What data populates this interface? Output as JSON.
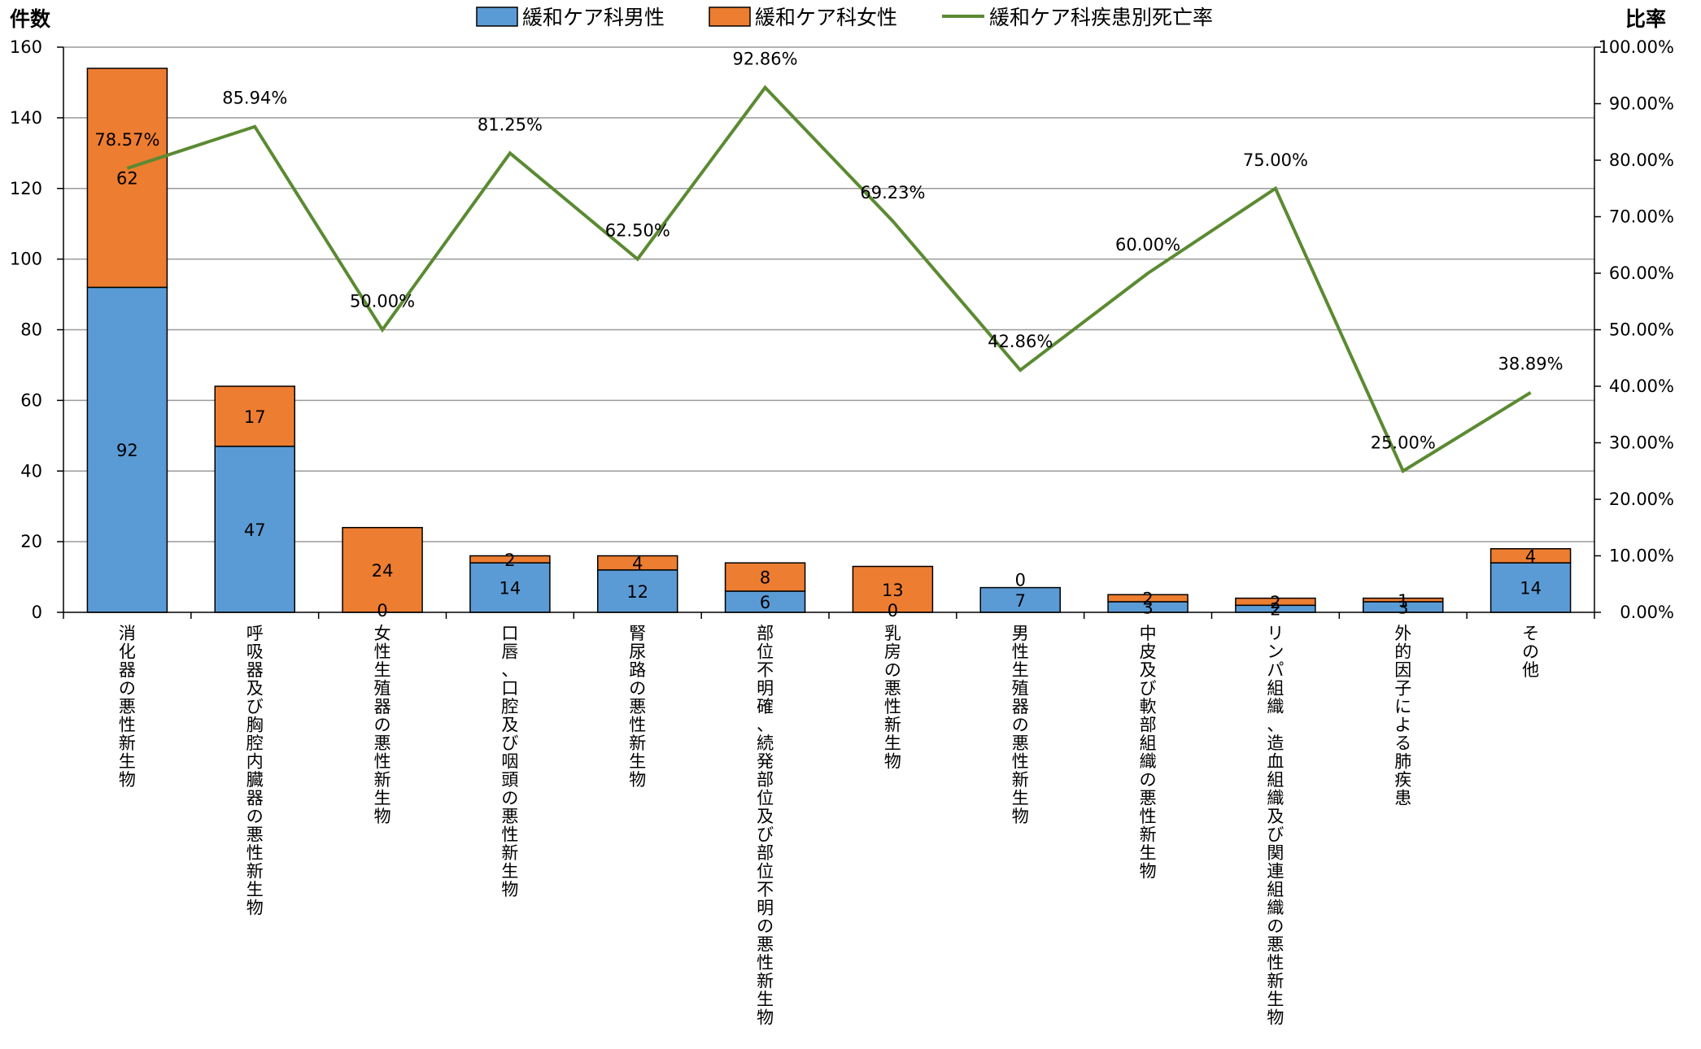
{
  "chart_data": {
    "type": "bar",
    "stacked": true,
    "y_left_title": "件数",
    "y_right_title": "比率",
    "ylim": [
      0,
      160
    ],
    "y_left_ticks": [
      "0",
      "20",
      "40",
      "60",
      "80",
      "100",
      "120",
      "140",
      "160"
    ],
    "y2lim": [
      0,
      1
    ],
    "y_right_ticks": [
      "0.00%",
      "10.00%",
      "20.00%",
      "30.00%",
      "40.00%",
      "50.00%",
      "60.00%",
      "70.00%",
      "80.00%",
      "90.00%",
      "100.00%"
    ],
    "gridlines": true,
    "legend_position": "top",
    "categories": [
      "消化器の悪性新生物",
      "呼吸器及び胸腔内臓器の悪性新生物",
      "女性生殖器の悪性新生物",
      "口唇、口腔及び咽頭の悪性新生物",
      "腎尿路の悪性新生物",
      "部位不明確、続発部位及び部位不明の悪性新生物",
      "乳房の悪性新生物",
      "男性生殖器の悪性新生物",
      "中皮及び軟部組織の悪性新生物",
      "リンパ組織、造血組織及び関連組織の悪性新生物",
      "外的因子による肺疾患",
      "その他"
    ],
    "series": [
      {
        "name": "緩和ケア科男性",
        "kind": "bar",
        "color": "#5b9bd5",
        "values": [
          92,
          47,
          0,
          14,
          12,
          6,
          0,
          7,
          3,
          2,
          3,
          14
        ],
        "labels": [
          "92",
          "47",
          "0",
          "14",
          "12",
          "6",
          "0",
          "7",
          "3",
          "2",
          "3",
          "14"
        ]
      },
      {
        "name": "緩和ケア科女性",
        "kind": "bar",
        "color": "#ed7d31",
        "values": [
          62,
          17,
          24,
          2,
          4,
          8,
          13,
          0,
          2,
          2,
          1,
          4
        ],
        "labels": [
          "62",
          "17",
          "24",
          "2",
          "4",
          "8",
          "13",
          "0",
          "2",
          "2",
          "1",
          "4"
        ]
      },
      {
        "name": "緩和ケア科疾患別死亡率",
        "kind": "line",
        "axis": "right",
        "color": "#5b8a32",
        "values": [
          0.7857,
          0.8594,
          0.5,
          0.8125,
          0.625,
          0.9286,
          0.6923,
          0.4286,
          0.6,
          0.75,
          0.25,
          0.3889
        ],
        "labels": [
          "78.57%",
          "85.94%",
          "50.00%",
          "81.25%",
          "62.50%",
          "92.86%",
          "69.23%",
          "42.86%",
          "60.00%",
          "75.00%",
          "25.00%",
          "38.89%"
        ]
      }
    ]
  }
}
